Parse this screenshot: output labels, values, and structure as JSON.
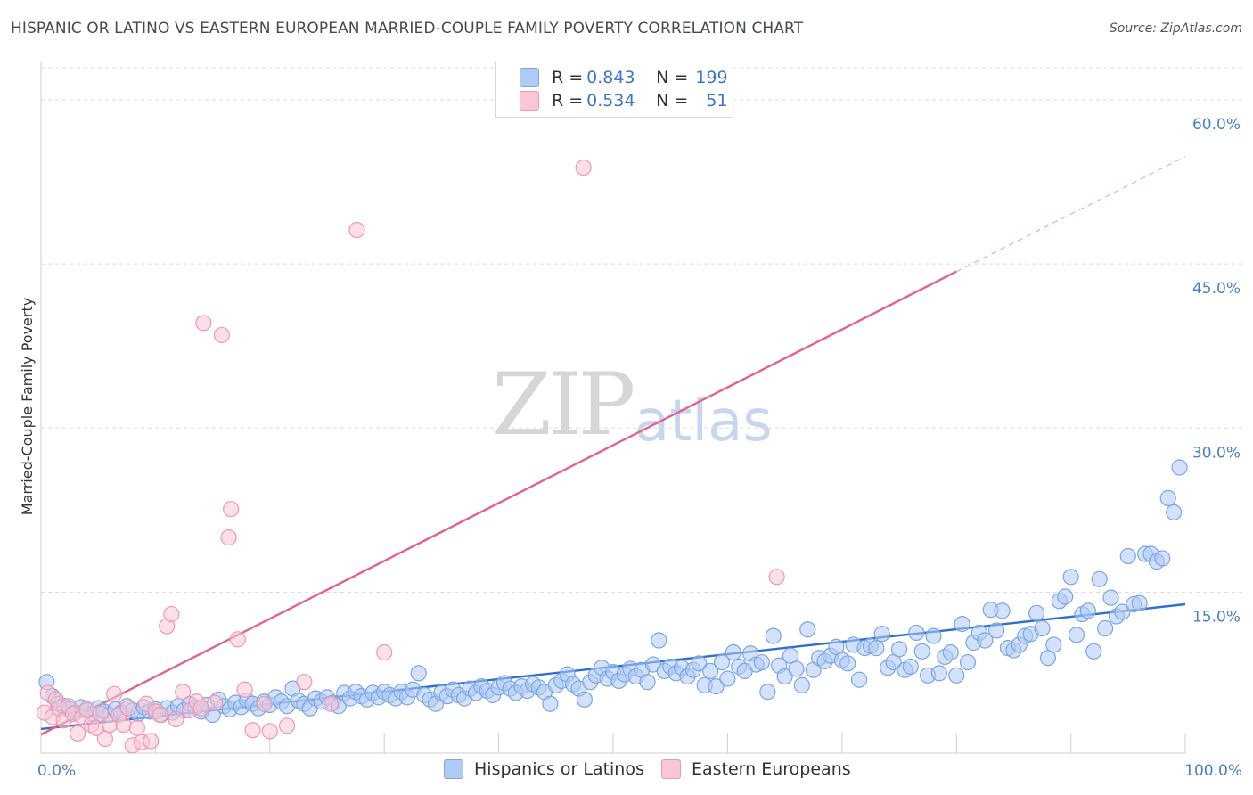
{
  "title": "HISPANIC OR LATINO VS EASTERN EUROPEAN MARRIED-COUPLE FAMILY POVERTY CORRELATION CHART",
  "source": "Source: ZipAtlas.com",
  "watermark": {
    "zip": "ZIP",
    "atlas": "atlas"
  },
  "legend": {
    "rows": [
      {
        "r_label": "R = ",
        "r": "0.843",
        "n_label": "N = ",
        "n": "199",
        "color": "#aecbf5",
        "border": "#7aa6e2"
      },
      {
        "r_label": "R = ",
        "r": "0.534",
        "n_label": "N = ",
        "n": "51",
        "color": "#f9c6d6",
        "border": "#ee98b3"
      }
    ]
  },
  "bottom_legend": [
    {
      "label": "Hispanics or Latinos",
      "color": "#aecbf5",
      "border": "#7aa6e2"
    },
    {
      "label": "Eastern Europeans",
      "color": "#f9c6d6",
      "border": "#ee98b3"
    }
  ],
  "chart_data": {
    "type": "scatter",
    "title": "HISPANIC OR LATINO VS EASTERN EUROPEAN MARRIED-COUPLE FAMILY POVERTY CORRELATION CHART",
    "xlabel": "",
    "ylabel": "Married-Couple Family Poverty",
    "xlim": [
      0,
      100
    ],
    "ylim": [
      0,
      63
    ],
    "x_tick_labels": [
      "0.0%",
      "100.0%"
    ],
    "y_ticks": [
      15,
      30,
      45,
      60
    ],
    "y_tick_labels": [
      "15.0%",
      "30.0%",
      "45.0%",
      "60.0%"
    ],
    "grid": true,
    "series": [
      {
        "name": "Hispanics or Latinos",
        "color": "#7aa6e2",
        "fill": "#aecbf5",
        "trend": {
          "x": [
            0,
            100
          ],
          "y": [
            2.5,
            13.9
          ]
        },
        "points": [
          [
            0.5,
            6.8
          ],
          [
            1,
            5.5
          ],
          [
            1.5,
            4.8
          ],
          [
            2,
            4.6
          ],
          [
            2.5,
            4.3
          ],
          [
            3,
            4.0
          ],
          [
            3.5,
            4.5
          ],
          [
            4,
            4.2
          ],
          [
            4.5,
            3.9
          ],
          [
            5,
            4.4
          ],
          [
            5.5,
            4.1
          ],
          [
            6,
            3.8
          ],
          [
            6.5,
            4.3
          ],
          [
            7,
            4.0
          ],
          [
            7.5,
            4.6
          ],
          [
            8,
            4.2
          ],
          [
            8.5,
            3.9
          ],
          [
            9,
            4.5
          ],
          [
            9.5,
            4.1
          ],
          [
            10,
            4.3
          ],
          [
            10.5,
            3.8
          ],
          [
            11,
            4.4
          ],
          [
            11.5,
            4.0
          ],
          [
            12,
            4.6
          ],
          [
            12.5,
            4.2
          ],
          [
            13,
            4.8
          ],
          [
            13.5,
            4.5
          ],
          [
            14,
            4.1
          ],
          [
            14.5,
            4.7
          ],
          [
            15,
            3.8
          ],
          [
            15.5,
            5.2
          ],
          [
            16,
            4.6
          ],
          [
            16.5,
            4.3
          ],
          [
            17,
            4.9
          ],
          [
            17.5,
            4.5
          ],
          [
            18,
            5.1
          ],
          [
            18.5,
            4.8
          ],
          [
            19,
            4.4
          ],
          [
            19.5,
            5.0
          ],
          [
            20,
            4.7
          ],
          [
            20.5,
            5.4
          ],
          [
            21,
            5.0
          ],
          [
            21.5,
            4.6
          ],
          [
            22,
            6.2
          ],
          [
            22.5,
            5.1
          ],
          [
            23,
            4.8
          ],
          [
            23.5,
            4.4
          ],
          [
            24,
            5.3
          ],
          [
            24.5,
            5.0
          ],
          [
            25,
            5.4
          ],
          [
            25.5,
            4.9
          ],
          [
            26,
            4.6
          ],
          [
            26.5,
            5.8
          ],
          [
            27,
            5.3
          ],
          [
            27.5,
            5.9
          ],
          [
            28,
            5.5
          ],
          [
            28.5,
            5.2
          ],
          [
            29,
            5.8
          ],
          [
            29.5,
            5.4
          ],
          [
            30,
            5.9
          ],
          [
            30.5,
            5.6
          ],
          [
            31,
            5.3
          ],
          [
            31.5,
            5.9
          ],
          [
            32,
            5.4
          ],
          [
            32.5,
            6.1
          ],
          [
            33,
            7.6
          ],
          [
            33.5,
            5.6
          ],
          [
            34,
            5.2
          ],
          [
            34.5,
            4.8
          ],
          [
            35,
            5.8
          ],
          [
            35.5,
            5.5
          ],
          [
            36,
            6.1
          ],
          [
            36.5,
            5.6
          ],
          [
            37,
            5.3
          ],
          [
            37.5,
            6.2
          ],
          [
            38,
            5.8
          ],
          [
            38.5,
            6.4
          ],
          [
            39,
            6.0
          ],
          [
            39.5,
            5.6
          ],
          [
            40,
            6.3
          ],
          [
            40.5,
            6.7
          ],
          [
            41,
            6.2
          ],
          [
            41.5,
            5.8
          ],
          [
            42,
            6.4
          ],
          [
            42.5,
            6.0
          ],
          [
            43,
            6.6
          ],
          [
            43.5,
            6.3
          ],
          [
            44,
            5.9
          ],
          [
            44.5,
            4.8
          ],
          [
            45,
            6.5
          ],
          [
            45.5,
            6.9
          ],
          [
            46,
            7.5
          ],
          [
            46.5,
            6.6
          ],
          [
            47,
            6.2
          ],
          [
            47.5,
            5.2
          ],
          [
            48,
            6.8
          ],
          [
            48.5,
            7.4
          ],
          [
            49,
            8.1
          ],
          [
            49.5,
            7.1
          ],
          [
            50,
            7.7
          ],
          [
            50.5,
            6.9
          ],
          [
            51,
            7.5
          ],
          [
            51.5,
            8.0
          ],
          [
            52,
            7.3
          ],
          [
            52.5,
            7.9
          ],
          [
            53,
            6.8
          ],
          [
            53.5,
            8.4
          ],
          [
            54,
            10.6
          ],
          [
            54.5,
            7.8
          ],
          [
            55,
            8.2
          ],
          [
            55.5,
            7.6
          ],
          [
            56,
            8.1
          ],
          [
            56.5,
            7.3
          ],
          [
            57,
            7.9
          ],
          [
            57.5,
            8.5
          ],
          [
            58,
            6.5
          ],
          [
            58.5,
            7.8
          ],
          [
            59,
            6.4
          ],
          [
            59.5,
            8.6
          ],
          [
            60,
            7.1
          ],
          [
            60.5,
            9.5
          ],
          [
            61,
            8.2
          ],
          [
            61.5,
            7.8
          ],
          [
            62,
            9.4
          ],
          [
            62.5,
            8.4
          ],
          [
            63,
            8.6
          ],
          [
            63.5,
            5.9
          ],
          [
            64,
            11.0
          ],
          [
            64.5,
            8.3
          ],
          [
            65,
            7.3
          ],
          [
            65.5,
            9.2
          ],
          [
            66,
            8.0
          ],
          [
            66.5,
            6.5
          ],
          [
            67,
            11.6
          ],
          [
            67.5,
            7.9
          ],
          [
            68,
            9.0
          ],
          [
            68.5,
            8.7
          ],
          [
            69,
            9.2
          ],
          [
            69.5,
            10.0
          ],
          [
            70,
            8.8
          ],
          [
            70.5,
            8.5
          ],
          [
            71,
            10.2
          ],
          [
            71.5,
            7.0
          ],
          [
            72,
            9.9
          ],
          [
            72.5,
            10.1
          ],
          [
            73,
            9.9
          ],
          [
            73.5,
            11.2
          ],
          [
            74,
            8.1
          ],
          [
            74.5,
            8.6
          ],
          [
            75,
            9.8
          ],
          [
            75.5,
            7.9
          ],
          [
            76,
            8.2
          ],
          [
            76.5,
            11.3
          ],
          [
            77,
            9.6
          ],
          [
            77.5,
            7.4
          ],
          [
            78,
            11.0
          ],
          [
            78.5,
            7.6
          ],
          [
            79,
            9.1
          ],
          [
            79.5,
            9.5
          ],
          [
            80,
            7.4
          ],
          [
            80.5,
            12.1
          ],
          [
            81,
            8.6
          ],
          [
            81.5,
            10.4
          ],
          [
            82,
            11.3
          ],
          [
            82.5,
            10.6
          ],
          [
            83,
            13.4
          ],
          [
            83.5,
            11.5
          ],
          [
            84,
            13.3
          ],
          [
            84.5,
            9.9
          ],
          [
            85,
            9.7
          ],
          [
            85.5,
            10.2
          ],
          [
            86,
            11.0
          ],
          [
            86.5,
            11.2
          ],
          [
            87,
            13.1
          ],
          [
            87.5,
            11.7
          ],
          [
            88,
            9.0
          ],
          [
            88.5,
            10.2
          ],
          [
            89,
            14.2
          ],
          [
            89.5,
            14.6
          ],
          [
            90,
            16.4
          ],
          [
            90.5,
            11.1
          ],
          [
            91,
            13.0
          ],
          [
            91.5,
            13.3
          ],
          [
            92,
            9.6
          ],
          [
            92.5,
            16.2
          ],
          [
            93,
            11.7
          ],
          [
            93.5,
            14.5
          ],
          [
            94,
            12.8
          ],
          [
            94.5,
            13.2
          ],
          [
            95,
            18.3
          ],
          [
            95.5,
            13.9
          ],
          [
            96,
            14.0
          ],
          [
            96.5,
            18.5
          ],
          [
            97,
            18.5
          ],
          [
            97.5,
            17.8
          ],
          [
            98,
            18.1
          ],
          [
            98.5,
            23.6
          ],
          [
            99,
            22.3
          ],
          [
            99.5,
            26.4
          ]
        ]
      },
      {
        "name": "Eastern Europeans",
        "color": "#ee98b3",
        "fill": "#f9c6d6",
        "trend": {
          "x": [
            0,
            80
          ],
          "y": [
            2.0,
            44.3
          ],
          "dashed_to": [
            100,
            54.8
          ]
        },
        "points": [
          [
            0.3,
            4.0
          ],
          [
            0.6,
            5.8
          ],
          [
            1,
            3.6
          ],
          [
            1.3,
            5.2
          ],
          [
            1.6,
            4.4
          ],
          [
            2,
            3.3
          ],
          [
            2.4,
            4.6
          ],
          [
            2.8,
            3.9
          ],
          [
            3.2,
            2.1
          ],
          [
            3.6,
            3.6
          ],
          [
            4,
            4.3
          ],
          [
            4.4,
            2.9
          ],
          [
            4.8,
            2.6
          ],
          [
            5.2,
            3.9
          ],
          [
            5.6,
            1.6
          ],
          [
            6,
            2.9
          ],
          [
            6.4,
            5.7
          ],
          [
            6.8,
            3.8
          ],
          [
            7.2,
            2.9
          ],
          [
            7.6,
            4.4
          ],
          [
            8,
            1.0
          ],
          [
            8.4,
            2.6
          ],
          [
            8.8,
            1.3
          ],
          [
            9.2,
            4.8
          ],
          [
            9.6,
            1.4
          ],
          [
            10,
            4.1
          ],
          [
            10.4,
            3.8
          ],
          [
            11,
            11.9
          ],
          [
            11.4,
            13.0
          ],
          [
            11.8,
            3.4
          ],
          [
            12.4,
            5.9
          ],
          [
            13,
            4.2
          ],
          [
            13.6,
            5.0
          ],
          [
            14,
            4.4
          ],
          [
            14.2,
            39.6
          ],
          [
            15.2,
            4.9
          ],
          [
            15.8,
            38.5
          ],
          [
            16.4,
            20.0
          ],
          [
            16.6,
            22.6
          ],
          [
            17.2,
            10.7
          ],
          [
            17.8,
            6.1
          ],
          [
            18.5,
            2.4
          ],
          [
            19.5,
            4.8
          ],
          [
            20,
            2.3
          ],
          [
            21.5,
            2.8
          ],
          [
            23,
            6.8
          ],
          [
            25.3,
            4.8
          ],
          [
            27.6,
            48.1
          ],
          [
            30,
            9.5
          ],
          [
            47.4,
            53.8
          ],
          [
            64.3,
            16.4
          ]
        ]
      }
    ]
  }
}
